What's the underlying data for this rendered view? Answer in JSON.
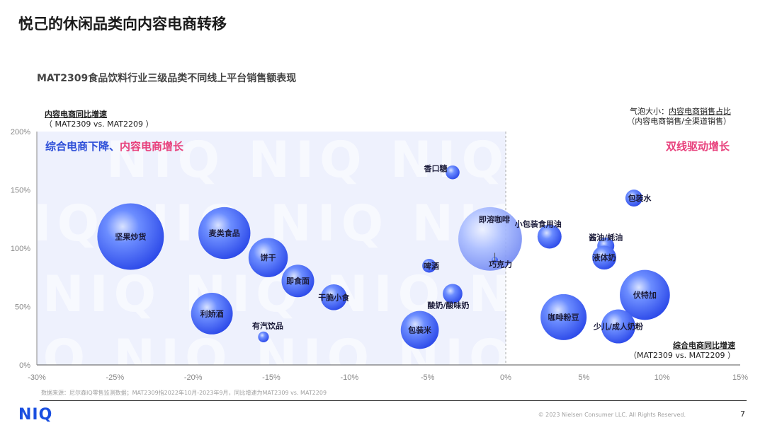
{
  "page": {
    "title": "悦己的休闲品类向内容电商转移",
    "footnote": "数据来源：尼尔森IQ零售监测数据；MAT2309指2022年10月-2023年9月，同比增速为MAT2309 vs. MAT2209",
    "logo": "NIQ",
    "copyright": "© 2023 Nielsen Consumer LLC. All Rights Reserved.",
    "page_number": "7"
  },
  "chart_data": {
    "type": "scatter",
    "title": "MAT2309食品饮料行业三级品类不同线上平台销售额表现",
    "ylabel": "内容电商同比增速",
    "ylabel_sub": "（ MAT2309 vs. MAT2209 ）",
    "xlabel": "综合电商同比增速",
    "xlabel_sub": "（MAT2309 vs. MAT2209 ）",
    "bubble_note": "气泡大小：内容电商销售占比",
    "bubble_note_sub": "（内容电商销售/全渠道销售）",
    "bubble_note_prefix": "气泡大小：",
    "bubble_note_underlined": "内容电商销售占比",
    "quadrant_left_a": "综合电商下降、",
    "quadrant_left_b": "内容电商增长",
    "quadrant_right": "双线驱动增长",
    "watermark": "NIQ",
    "xlim": [
      -30,
      15
    ],
    "ylim": [
      0,
      200
    ],
    "x_ticks": [
      -30,
      -25,
      -20,
      -15,
      -10,
      -5,
      0,
      5,
      10,
      15
    ],
    "x_tick_labels": [
      "-30%",
      "-25%",
      "-20%",
      "-15%",
      "-10%",
      "-5%",
      "0%",
      "5%",
      "10%",
      "15%"
    ],
    "y_ticks": [
      0,
      50,
      100,
      150,
      200
    ],
    "y_tick_labels": [
      "0%",
      "50%",
      "100%",
      "150%",
      "200%"
    ],
    "points": [
      {
        "label": "香口糖",
        "x": -3.4,
        "y": 165,
        "size": 0.1
      },
      {
        "label": "坚果炒货",
        "x": -24.0,
        "y": 110,
        "size": 2.3
      },
      {
        "label": "麦类食品",
        "x": -18.0,
        "y": 113,
        "size": 1.4
      },
      {
        "label": "饼干",
        "x": -15.2,
        "y": 92,
        "size": 0.8
      },
      {
        "label": "即食面",
        "x": -13.3,
        "y": 72,
        "size": 0.55
      },
      {
        "label": "干脆小食",
        "x": -11.0,
        "y": 58,
        "size": 0.35
      },
      {
        "label": "利娇酒",
        "x": -18.8,
        "y": 44,
        "size": 0.9
      },
      {
        "label": "有汽饮品",
        "x": -15.5,
        "y": 24,
        "size": 0.06
      },
      {
        "label": "啤酒",
        "x": -4.9,
        "y": 85,
        "size": 0.1
      },
      {
        "label": "酸奶/酸味奶",
        "x": -3.4,
        "y": 61,
        "size": 0.2
      },
      {
        "label": "包装米",
        "x": -5.5,
        "y": 30,
        "size": 0.75
      },
      {
        "label": "即溶咖啡",
        "x": -1.0,
        "y": 108,
        "size": 2.1
      },
      {
        "label": "巧克力",
        "x": -0.7,
        "y": 90,
        "size": 0.02
      },
      {
        "label": "小包装食用油",
        "x": 2.8,
        "y": 110,
        "size": 0.3
      },
      {
        "label": "咖啡粉豆",
        "x": 3.7,
        "y": 41,
        "size": 1.1
      },
      {
        "label": "酱油/蚝油",
        "x": 6.4,
        "y": 102,
        "size": 0.15
      },
      {
        "label": "液体奶",
        "x": 6.3,
        "y": 92,
        "size": 0.3
      },
      {
        "label": "包装水",
        "x": 8.2,
        "y": 143,
        "size": 0.15
      },
      {
        "label": "伏特加",
        "x": 8.9,
        "y": 60,
        "size": 1.3
      },
      {
        "label": "少儿/成人奶粉",
        "x": 7.2,
        "y": 33,
        "size": 0.6
      }
    ]
  }
}
